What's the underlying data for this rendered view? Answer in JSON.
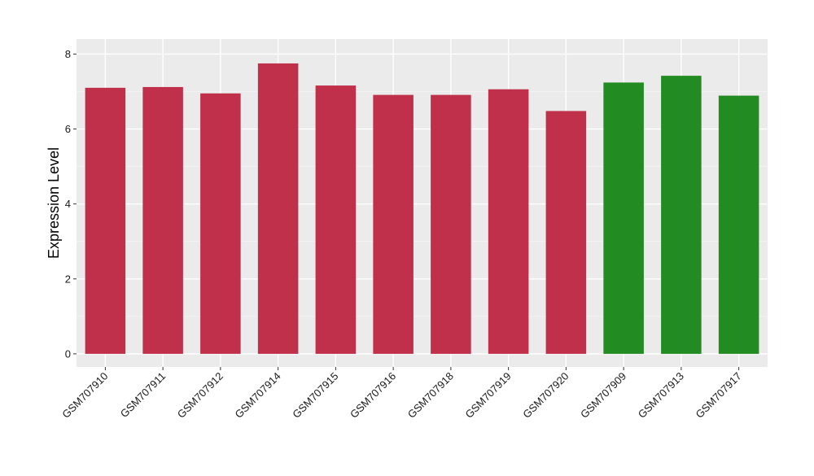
{
  "chart_data": {
    "type": "bar",
    "xlabel": "",
    "ylabel": "Expression Level",
    "ylim": [
      -0.35,
      8.4
    ],
    "yticks": [
      0,
      2,
      4,
      6,
      8
    ],
    "ytick_labels": [
      "0",
      "2",
      "4",
      "6",
      "8"
    ],
    "grid": true,
    "background": "#ebebeb",
    "categories": [
      "GSM707910",
      "GSM707911",
      "GSM707912",
      "GSM707914",
      "GSM707915",
      "GSM707916",
      "GSM707918",
      "GSM707919",
      "GSM707920",
      "GSM707909",
      "GSM707913",
      "GSM707917"
    ],
    "values": [
      7.1,
      7.12,
      6.95,
      7.75,
      7.16,
      6.91,
      6.91,
      7.06,
      6.48,
      7.24,
      7.42,
      6.89
    ],
    "bar_colors": [
      "#c0304a",
      "#c0304a",
      "#c0304a",
      "#c0304a",
      "#c0304a",
      "#c0304a",
      "#c0304a",
      "#c0304a",
      "#c0304a",
      "#228b22",
      "#228b22",
      "#228b22"
    ]
  }
}
